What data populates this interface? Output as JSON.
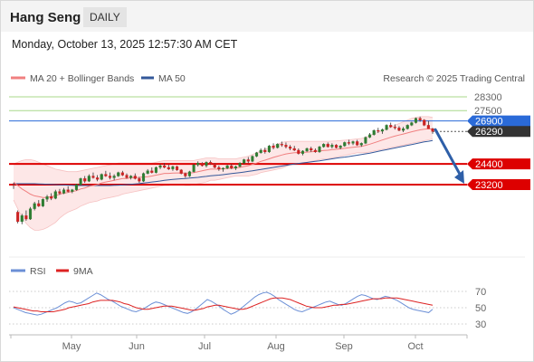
{
  "header": {
    "title": "Hang Seng",
    "timeframe": "DAILY"
  },
  "datetime": "Monday, October 13, 2025 12:57:30 AM CET",
  "legend": {
    "ma20_label": "MA 20 + Bollinger Bands",
    "ma50_label": "MA 50",
    "credit": "Research © 2025 Trading Central",
    "rsi_label": "RSI",
    "rsi_ma_label": "9MA"
  },
  "colors": {
    "ma20": "#f08080",
    "ma50": "#34589a",
    "band": "#fde3e3",
    "support": "#dd0000",
    "resistance": "#a8d88a",
    "current": "#2a6ad8",
    "bull": "#2e7d32",
    "bear": "#cc2222",
    "rsi": "#6b8fd6",
    "rsi_ma": "#dd2222",
    "arrow": "#2e5fa8"
  },
  "chart_data": [
    {
      "type": "candlestick",
      "title": "Hang Seng",
      "timeframe": "DAILY",
      "x_labels": [
        "May",
        "Jun",
        "Jul",
        "Aug",
        "Sep",
        "Oct"
      ],
      "ylim": [
        20600,
        29200
      ],
      "levels": {
        "resistance": [
          28300,
          27500
        ],
        "current": 26900,
        "last": 26290,
        "support": [
          24400,
          23200
        ]
      },
      "level_labels": [
        "28300",
        "27500",
        "26900",
        "26290",
        "24400",
        "23200"
      ],
      "forecast_arrow": {
        "from": 26400,
        "to": 23250
      },
      "ohlc": [
        [
          23200,
          23300,
          22950,
          23150
        ],
        [
          21600,
          21700,
          20950,
          21050
        ],
        [
          21050,
          21500,
          20900,
          21400
        ],
        [
          21400,
          21700,
          21100,
          21200
        ],
        [
          21200,
          21900,
          21150,
          21800
        ],
        [
          21800,
          22200,
          21700,
          22100
        ],
        [
          22100,
          22300,
          21900,
          21950
        ],
        [
          21950,
          22400,
          21900,
          22350
        ],
        [
          22350,
          22600,
          22200,
          22500
        ],
        [
          22500,
          22700,
          22300,
          22400
        ],
        [
          22400,
          22900,
          22350,
          22800
        ],
        [
          22800,
          22950,
          22600,
          22700
        ],
        [
          22700,
          23000,
          22650,
          22900
        ],
        [
          22900,
          23100,
          22750,
          22800
        ],
        [
          22800,
          22950,
          22700,
          22900
        ],
        [
          22900,
          23250,
          22850,
          23200
        ],
        [
          23200,
          23600,
          23150,
          23550
        ],
        [
          23550,
          23700,
          23300,
          23400
        ],
        [
          23400,
          23800,
          23350,
          23700
        ],
        [
          23700,
          23900,
          23550,
          23600
        ],
        [
          23600,
          23750,
          23400,
          23500
        ],
        [
          23500,
          23850,
          23450,
          23800
        ],
        [
          23800,
          24000,
          23650,
          23700
        ],
        [
          23700,
          23900,
          23500,
          23600
        ],
        [
          23600,
          23800,
          23450,
          23700
        ],
        [
          23700,
          23950,
          23650,
          23900
        ],
        [
          23900,
          24000,
          23700,
          23750
        ],
        [
          23750,
          23850,
          23550,
          23600
        ],
        [
          23600,
          23750,
          23500,
          23700
        ],
        [
          23700,
          23850,
          23500,
          23550
        ],
        [
          23550,
          23650,
          23300,
          23400
        ],
        [
          23400,
          23900,
          23350,
          23850
        ],
        [
          23850,
          24100,
          23800,
          24000
        ],
        [
          24000,
          24200,
          23850,
          23900
        ],
        [
          23900,
          24250,
          23850,
          24200
        ],
        [
          24200,
          24400,
          24100,
          24300
        ],
        [
          24300,
          24450,
          24150,
          24200
        ],
        [
          24200,
          24350,
          24050,
          24100
        ],
        [
          24100,
          24300,
          24000,
          24250
        ],
        [
          24250,
          24300,
          24000,
          24050
        ],
        [
          24050,
          24100,
          23800,
          23850
        ],
        [
          23850,
          23900,
          23600,
          23700
        ],
        [
          23700,
          24000,
          23650,
          23950
        ],
        [
          23950,
          24400,
          23900,
          24350
        ],
        [
          24350,
          24550,
          24250,
          24450
        ],
        [
          24450,
          24500,
          24250,
          24300
        ],
        [
          24300,
          24550,
          24200,
          24500
        ],
        [
          24500,
          24600,
          24350,
          24400
        ],
        [
          24400,
          24450,
          24150,
          24200
        ],
        [
          24200,
          24300,
          24000,
          24100
        ],
        [
          24100,
          24200,
          23950,
          24150
        ],
        [
          24150,
          24350,
          24100,
          24300
        ],
        [
          24300,
          24400,
          24100,
          24150
        ],
        [
          24150,
          24300,
          24050,
          24250
        ],
        [
          24250,
          24500,
          24200,
          24450
        ],
        [
          24450,
          24700,
          24400,
          24650
        ],
        [
          24650,
          24800,
          24450,
          24550
        ],
        [
          24550,
          24900,
          24500,
          24850
        ],
        [
          24850,
          25100,
          24800,
          25050
        ],
        [
          25050,
          25300,
          25000,
          25200
        ],
        [
          25200,
          25350,
          25000,
          25100
        ],
        [
          25100,
          25500,
          25050,
          25450
        ],
        [
          25450,
          25600,
          25250,
          25350
        ],
        [
          25350,
          25600,
          25300,
          25550
        ],
        [
          25550,
          25700,
          25400,
          25500
        ],
        [
          25500,
          25650,
          25300,
          25400
        ],
        [
          25400,
          25500,
          25200,
          25300
        ],
        [
          25300,
          25450,
          25150,
          25200
        ],
        [
          25200,
          25300,
          24950,
          25000
        ],
        [
          25000,
          25200,
          24900,
          25150
        ],
        [
          25150,
          25350,
          25100,
          25300
        ],
        [
          25300,
          25400,
          25100,
          25200
        ],
        [
          25200,
          25300,
          25050,
          25100
        ],
        [
          25100,
          25450,
          25050,
          25400
        ],
        [
          25400,
          25600,
          25350,
          25550
        ],
        [
          25550,
          25650,
          25350,
          25400
        ],
        [
          25400,
          25600,
          25300,
          25500
        ],
        [
          25500,
          25550,
          25300,
          25350
        ],
        [
          25350,
          25500,
          25250,
          25450
        ],
        [
          25450,
          25700,
          25400,
          25650
        ],
        [
          25650,
          25800,
          25500,
          25600
        ],
        [
          25600,
          25750,
          25500,
          25700
        ],
        [
          25700,
          25800,
          25450,
          25500
        ],
        [
          25500,
          25650,
          25400,
          25600
        ],
        [
          25600,
          26000,
          25550,
          25950
        ],
        [
          25950,
          26200,
          25900,
          26100
        ],
        [
          26100,
          26400,
          26050,
          26350
        ],
        [
          26350,
          26500,
          26200,
          26300
        ],
        [
          26300,
          26450,
          26150,
          26400
        ],
        [
          26400,
          26700,
          26350,
          26650
        ],
        [
          26650,
          26800,
          26500,
          26550
        ],
        [
          26550,
          26700,
          26400,
          26500
        ],
        [
          26500,
          26600,
          26300,
          26350
        ],
        [
          26350,
          26550,
          26250,
          26450
        ],
        [
          26450,
          26700,
          26400,
          26650
        ],
        [
          26650,
          26850,
          26600,
          26800
        ],
        [
          26800,
          27100,
          26750,
          27050
        ],
        [
          27050,
          27150,
          26850,
          26950
        ],
        [
          26950,
          27000,
          26600,
          26650
        ],
        [
          26650,
          26900,
          26500,
          26450
        ],
        [
          26450,
          26500,
          26150,
          26290
        ]
      ],
      "ma20": [
        23350,
        23150,
        22950,
        22800,
        22650,
        22550,
        22500,
        22450,
        22450,
        22500,
        22550,
        22650,
        22700,
        22750,
        22800,
        22850,
        22950,
        23000,
        23100,
        23150,
        23200,
        23300,
        23350,
        23400,
        23450,
        23500,
        23550,
        23550,
        23600,
        23600,
        23620,
        23640,
        23660,
        23700,
        23750,
        23800,
        23850,
        23850,
        23870,
        23880,
        23880,
        23870,
        23880,
        23900,
        23950,
        24000,
        24050,
        24100,
        24100,
        24100,
        24120,
        24140,
        24150,
        24170,
        24200,
        24250,
        24300,
        24380,
        24450,
        24550,
        24620,
        24700,
        24780,
        24850,
        24920,
        24980,
        25020,
        25050,
        25060,
        25070,
        25090,
        25110,
        25130,
        25150,
        25180,
        25200,
        25230,
        25250,
        25280,
        25310,
        25340,
        25370,
        25400,
        25420,
        25480,
        25550,
        25630,
        25710,
        25790,
        25870,
        25950,
        26020,
        26080,
        26140,
        26200,
        26270,
        26330,
        26380,
        26420,
        26440,
        26430
      ],
      "bb_upper": [
        24400,
        24500,
        24600,
        24650,
        24650,
        24600,
        24500,
        24400,
        24300,
        24200,
        24100,
        24050,
        24000,
        23950,
        23950,
        23950,
        24000,
        24050,
        24100,
        24150,
        24200,
        24250,
        24300,
        24350,
        24400,
        24450,
        24450,
        24450,
        24450,
        24450,
        24450,
        24450,
        24450,
        24450,
        24500,
        24550,
        24600,
        24600,
        24600,
        24600,
        24600,
        24600,
        24600,
        24600,
        24650,
        24700,
        24750,
        24750,
        24750,
        24700,
        24700,
        24700,
        24700,
        24700,
        24750,
        24800,
        24850,
        24950,
        25050,
        25150,
        25250,
        25350,
        25450,
        25550,
        25650,
        25700,
        25720,
        25720,
        25720,
        25720,
        25720,
        25720,
        25720,
        25720,
        25720,
        25720,
        25730,
        25740,
        25760,
        25780,
        25800,
        25830,
        25860,
        25880,
        25950,
        26050,
        26150,
        26250,
        26350,
        26450,
        26550,
        26650,
        26750,
        26850,
        26950,
        27050,
        27100,
        27150,
        27150,
        27150,
        27100
      ],
      "bb_lower": [
        22300,
        21800,
        21300,
        20950,
        20700,
        20550,
        20550,
        20600,
        20700,
        20850,
        21000,
        21250,
        21450,
        21600,
        21700,
        21800,
        21950,
        22050,
        22150,
        22200,
        22250,
        22350,
        22400,
        22450,
        22500,
        22550,
        22650,
        22700,
        22750,
        22800,
        22850,
        22900,
        22950,
        23000,
        23050,
        23100,
        23150,
        23150,
        23200,
        23200,
        23200,
        23150,
        23150,
        23200,
        23250,
        23300,
        23350,
        23450,
        23450,
        23500,
        23550,
        23600,
        23650,
        23700,
        23700,
        23700,
        23700,
        23750,
        23800,
        23900,
        23950,
        24000,
        24050,
        24100,
        24150,
        24250,
        24350,
        24400,
        24400,
        24450,
        24500,
        24550,
        24600,
        24650,
        24700,
        24700,
        24750,
        24800,
        24850,
        24900,
        24950,
        25000,
        25050,
        25050,
        25050,
        25100,
        25150,
        25200,
        25250,
        25300,
        25350,
        25400,
        25450,
        25500,
        25550,
        25600,
        25650,
        25700,
        25750,
        25800,
        25850
      ],
      "ma50": [
        23250,
        23250,
        23250,
        23250,
        23250,
        23250,
        23240,
        23230,
        23220,
        23210,
        23200,
        23190,
        23180,
        23170,
        23160,
        23150,
        23150,
        23150,
        23150,
        23150,
        23150,
        23150,
        23150,
        23150,
        23160,
        23170,
        23180,
        23200,
        23220,
        23240,
        23260,
        23290,
        23320,
        23350,
        23380,
        23410,
        23450,
        23480,
        23500,
        23520,
        23540,
        23560,
        23580,
        23600,
        23620,
        23650,
        23680,
        23710,
        23730,
        23750,
        23780,
        23810,
        23840,
        23870,
        23900,
        23930,
        23970,
        24000,
        24040,
        24080,
        24120,
        24160,
        24200,
        24240,
        24280,
        24320,
        24360,
        24400,
        24430,
        24460,
        24490,
        24520,
        24550,
        24580,
        24620,
        24660,
        24700,
        24740,
        24770,
        24800,
        24830,
        24870,
        24910,
        24950,
        24990,
        25030,
        25080,
        25130,
        25180,
        25230,
        25280,
        25330,
        25380,
        25430,
        25480,
        25530,
        25580,
        25630,
        25680,
        25720,
        25760
      ]
    },
    {
      "type": "line",
      "title": "RSI",
      "series_names": [
        "RSI",
        "9MA"
      ],
      "y_ticks": [
        70,
        50,
        30
      ],
      "ylim": [
        20,
        80
      ],
      "rsi": [
        50,
        48,
        46,
        44,
        43,
        42,
        41,
        42,
        44,
        46,
        48,
        50,
        53,
        56,
        58,
        57,
        55,
        56,
        59,
        62,
        65,
        68,
        66,
        63,
        60,
        58,
        55,
        52,
        50,
        48,
        46,
        45,
        47,
        49,
        52,
        55,
        57,
        56,
        54,
        52,
        50,
        48,
        46,
        44,
        43,
        45,
        48,
        52,
        56,
        60,
        58,
        55,
        52,
        48,
        45,
        42,
        44,
        47,
        51,
        55,
        59,
        63,
        66,
        68,
        69,
        67,
        64,
        60,
        57,
        54,
        51,
        48,
        46,
        45,
        47,
        49,
        51,
        53,
        55,
        57,
        58,
        56,
        54,
        53,
        55,
        58,
        61,
        64,
        66,
        65,
        63,
        61,
        60,
        62,
        64,
        63,
        61,
        59,
        56,
        53,
        50,
        48,
        47,
        46,
        45,
        44,
        48
      ],
      "rsi_ma": [
        51,
        50,
        49,
        48,
        47,
        46,
        46,
        45,
        45,
        45,
        45,
        46,
        47,
        48,
        50,
        51,
        52,
        53,
        54,
        55,
        57,
        58,
        59,
        59,
        59,
        59,
        58,
        57,
        55,
        54,
        52,
        50,
        49,
        48,
        48,
        49,
        50,
        51,
        52,
        52,
        52,
        51,
        50,
        49,
        48,
        47,
        47,
        48,
        49,
        51,
        52,
        53,
        53,
        52,
        51,
        50,
        49,
        48,
        48,
        49,
        51,
        53,
        55,
        57,
        59,
        61,
        62,
        62,
        62,
        61,
        60,
        58,
        56,
        54,
        52,
        51,
        50,
        50,
        50,
        51,
        52,
        53,
        53,
        54,
        54,
        55,
        56,
        57,
        58,
        59,
        60,
        61,
        61,
        61,
        62,
        62,
        62,
        62,
        61,
        60,
        59,
        58,
        57,
        56,
        55,
        54,
        53
      ]
    }
  ]
}
